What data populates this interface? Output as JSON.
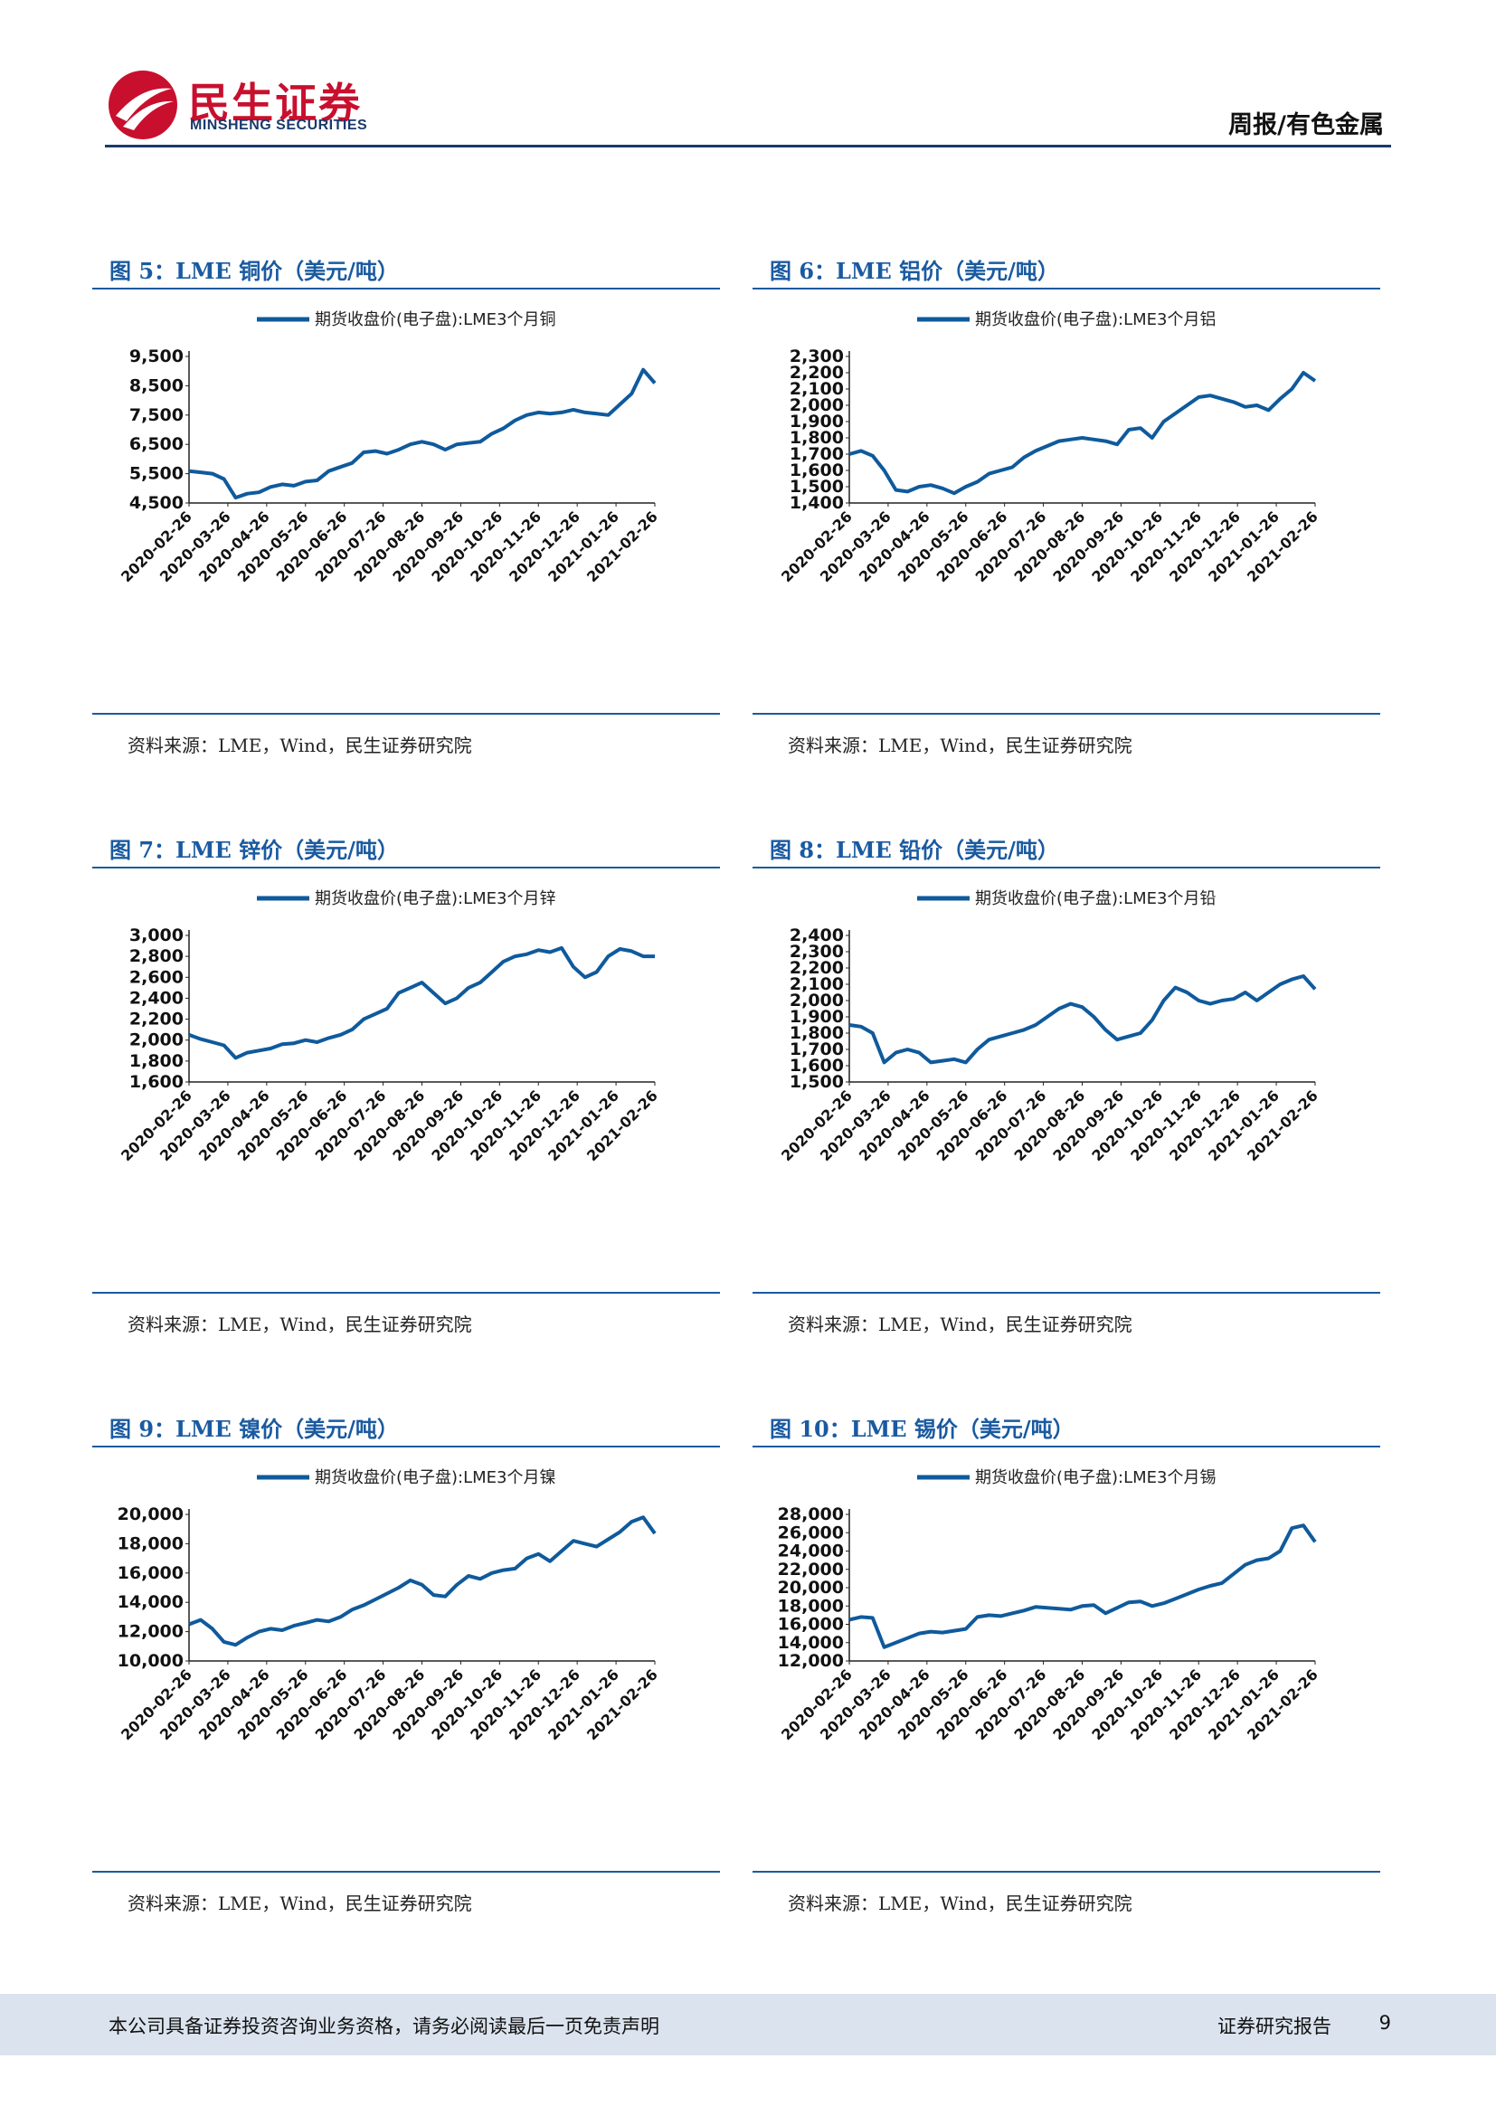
{
  "header": {
    "logo_cn": "民生证券",
    "logo_en": "MINSHENG SECURITIES",
    "category": "周报/有色金属"
  },
  "colors": {
    "accent": "#1a5aa0",
    "line": "#0f5a9c",
    "brand_red": "#c8102e",
    "footer_bg": "#dbe3ee"
  },
  "footer": {
    "disclaimer": "本公司具备证券投资咨询业务资格，请务必阅读最后一页免责声明",
    "report_type": "证券研究报告",
    "page": "9"
  },
  "figures": [
    {
      "title": "图 5：LME 铜价（美元/吨）",
      "source": "资料来源：LME，Wind，民生证券研究院"
    },
    {
      "title": "图 6：LME 铝价（美元/吨）",
      "source": "资料来源：LME，Wind，民生证券研究院"
    },
    {
      "title": "图 7：LME 锌价（美元/吨）",
      "source": "资料来源：LME，Wind，民生证券研究院"
    },
    {
      "title": "图 8：LME 铅价（美元/吨）",
      "source": "资料来源：LME，Wind，民生证券研究院"
    },
    {
      "title": "图 9：LME 镍价（美元/吨）",
      "source": "资料来源：LME，Wind，民生证券研究院"
    },
    {
      "title": "图 10：LME 锡价（美元/吨）",
      "source": "资料来源：LME，Wind，民生证券研究院"
    }
  ],
  "chart_data": [
    {
      "type": "line",
      "legend": "期货收盘价(电子盘):LME3个月铜",
      "x_ticks": [
        "2020-02-26",
        "2020-03-26",
        "2020-04-26",
        "2020-05-26",
        "2020-06-26",
        "2020-07-26",
        "2020-08-26",
        "2020-09-26",
        "2020-10-26",
        "2020-11-26",
        "2020-12-26",
        "2021-01-26",
        "2021-02-26"
      ],
      "y_ticks": [
        "4,500",
        "5,500",
        "6,500",
        "7,500",
        "8,500",
        "9,500"
      ],
      "ylim": [
        4500,
        10000
      ],
      "grid": false,
      "legend_position": "top",
      "series": [
        {
          "name": "期货收盘价(电子盘):LME3个月铜",
          "values": [
            5700,
            5650,
            5600,
            5400,
            4700,
            4850,
            4900,
            5100,
            5200,
            5150,
            5300,
            5350,
            5700,
            5850,
            6000,
            6400,
            6450,
            6350,
            6500,
            6700,
            6800,
            6700,
            6500,
            6700,
            6750,
            6800,
            7100,
            7300,
            7600,
            7800,
            7900,
            7850,
            7900,
            8000,
            7900,
            7850,
            7800,
            8200,
            8600,
            9500,
            9000
          ]
        }
      ]
    },
    {
      "type": "line",
      "legend": "期货收盘价(电子盘):LME3个月铝",
      "x_ticks": [
        "2020-02-26",
        "2020-03-26",
        "2020-04-26",
        "2020-05-26",
        "2020-06-26",
        "2020-07-26",
        "2020-08-26",
        "2020-09-26",
        "2020-10-26",
        "2020-11-26",
        "2020-12-26",
        "2021-01-26",
        "2021-02-26"
      ],
      "y_ticks": [
        "1,400",
        "1,500",
        "1,600",
        "1,700",
        "1,800",
        "1,900",
        "2,000",
        "2,100",
        "2,200",
        "2,300"
      ],
      "ylim": [
        1400,
        2300
      ],
      "grid": false,
      "legend_position": "top",
      "series": [
        {
          "name": "期货收盘价(电子盘):LME3个月铝",
          "values": [
            1700,
            1720,
            1690,
            1600,
            1480,
            1470,
            1500,
            1510,
            1490,
            1460,
            1500,
            1530,
            1580,
            1600,
            1620,
            1680,
            1720,
            1750,
            1780,
            1790,
            1800,
            1790,
            1780,
            1760,
            1850,
            1860,
            1800,
            1900,
            1950,
            2000,
            2050,
            2060,
            2040,
            2020,
            1990,
            2000,
            1970,
            2040,
            2100,
            2200,
            2150
          ]
        }
      ]
    },
    {
      "type": "line",
      "legend": "期货收盘价(电子盘):LME3个月锌",
      "x_ticks": [
        "2020-02-26",
        "2020-03-26",
        "2020-04-26",
        "2020-05-26",
        "2020-06-26",
        "2020-07-26",
        "2020-08-26",
        "2020-09-26",
        "2020-10-26",
        "2020-11-26",
        "2020-12-26",
        "2021-01-26",
        "2021-02-26"
      ],
      "y_ticks": [
        "1,600",
        "1,800",
        "2,000",
        "2,200",
        "2,400",
        "2,600",
        "2,800",
        "3,000"
      ],
      "ylim": [
        1600,
        3000
      ],
      "grid": false,
      "legend_position": "top",
      "series": [
        {
          "name": "期货收盘价(电子盘):LME3个月锌",
          "values": [
            2050,
            2010,
            1980,
            1950,
            1830,
            1880,
            1900,
            1920,
            1960,
            1970,
            2000,
            1980,
            2020,
            2050,
            2100,
            2200,
            2250,
            2300,
            2450,
            2500,
            2550,
            2450,
            2350,
            2400,
            2500,
            2550,
            2650,
            2750,
            2800,
            2820,
            2860,
            2840,
            2880,
            2700,
            2600,
            2650,
            2800,
            2870,
            2850,
            2800,
            2800
          ]
        }
      ]
    },
    {
      "type": "line",
      "legend": "期货收盘价(电子盘):LME3个月铅",
      "x_ticks": [
        "2020-02-26",
        "2020-03-26",
        "2020-04-26",
        "2020-05-26",
        "2020-06-26",
        "2020-07-26",
        "2020-08-26",
        "2020-09-26",
        "2020-10-26",
        "2020-11-26",
        "2020-12-26",
        "2021-01-26",
        "2021-02-26"
      ],
      "y_ticks": [
        "1,500",
        "1,600",
        "1,700",
        "1,800",
        "1,900",
        "2,000",
        "2,100",
        "2,200",
        "2,300",
        "2,400"
      ],
      "ylim": [
        1500,
        2400
      ],
      "grid": false,
      "legend_position": "top",
      "series": [
        {
          "name": "期货收盘价(电子盘):LME3个月铅",
          "values": [
            1850,
            1840,
            1800,
            1620,
            1680,
            1700,
            1680,
            1620,
            1630,
            1640,
            1620,
            1700,
            1760,
            1780,
            1800,
            1820,
            1850,
            1900,
            1950,
            1980,
            1960,
            1900,
            1820,
            1760,
            1780,
            1800,
            1880,
            2000,
            2080,
            2050,
            2000,
            1980,
            2000,
            2010,
            2050,
            2000,
            2050,
            2100,
            2130,
            2150,
            2070
          ]
        }
      ]
    },
    {
      "type": "line",
      "legend": "期货收盘价(电子盘):LME3个月镍",
      "x_ticks": [
        "2020-02-26",
        "2020-03-26",
        "2020-04-26",
        "2020-05-26",
        "2020-06-26",
        "2020-07-26",
        "2020-08-26",
        "2020-09-26",
        "2020-10-26",
        "2020-11-26",
        "2020-12-26",
        "2021-01-26",
        "2021-02-26"
      ],
      "y_ticks": [
        "10,000",
        "12,000",
        "14,000",
        "16,000",
        "18,000",
        "20,000"
      ],
      "ylim": [
        10000,
        20000
      ],
      "grid": false,
      "legend_position": "top",
      "series": [
        {
          "name": "期货收盘价(电子盘):LME3个月镍",
          "values": [
            12500,
            12800,
            12200,
            11300,
            11100,
            11600,
            12000,
            12200,
            12100,
            12400,
            12600,
            12800,
            12700,
            13000,
            13500,
            13800,
            14200,
            14600,
            15000,
            15500,
            15200,
            14500,
            14400,
            15200,
            15800,
            15600,
            16000,
            16200,
            16300,
            17000,
            17300,
            16800,
            17500,
            18200,
            18000,
            17800,
            18300,
            18800,
            19500,
            19800,
            18700
          ]
        }
      ]
    },
    {
      "type": "line",
      "legend": "期货收盘价(电子盘):LME3个月锡",
      "x_ticks": [
        "2020-02-26",
        "2020-03-26",
        "2020-04-26",
        "2020-05-26",
        "2020-06-26",
        "2020-07-26",
        "2020-08-26",
        "2020-09-26",
        "2020-10-26",
        "2020-11-26",
        "2020-12-26",
        "2021-01-26",
        "2021-02-26"
      ],
      "y_ticks": [
        "12,000",
        "14,000",
        "16,000",
        "18,000",
        "20,000",
        "22,000",
        "24,000",
        "26,000",
        "28,000"
      ],
      "ylim": [
        12000,
        28000
      ],
      "grid": false,
      "legend_position": "top",
      "series": [
        {
          "name": "期货收盘价(电子盘):LME3个月锡",
          "values": [
            16500,
            16800,
            16700,
            13500,
            14000,
            14500,
            15000,
            15200,
            15100,
            15300,
            15500,
            16800,
            17000,
            16900,
            17200,
            17500,
            17900,
            17800,
            17700,
            17600,
            18000,
            18100,
            17200,
            17800,
            18400,
            18500,
            18000,
            18300,
            18800,
            19300,
            19800,
            20200,
            20500,
            21500,
            22500,
            23000,
            23200,
            24000,
            26500,
            26800,
            25000
          ]
        }
      ]
    }
  ]
}
